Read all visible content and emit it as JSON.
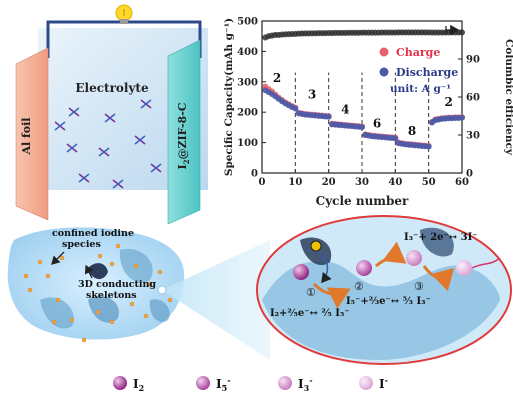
{
  "battery": {
    "left_electrode_label": "Al foil",
    "right_electrode_label_main": "I",
    "right_electrode_label_sub": "2",
    "right_electrode_label_rest": "@ZIF-8-C",
    "electrolyte_label": "Electrolyte",
    "colors": {
      "left_electrode": "#f2a98c",
      "right_electrode": "#66d0cf",
      "wire": "#2f4a8a",
      "bulb": "#ffd82a"
    }
  },
  "chart_data": {
    "type": "scatter",
    "xlabel": "Cycle number",
    "ylabel": "Specific Capacity(mAh g⁻¹)",
    "y2label": "Columbic efficiency",
    "xlim": [
      0,
      60
    ],
    "ylim": [
      0,
      500
    ],
    "y2lim": [
      0,
      120
    ],
    "xticks": [
      "0",
      "10",
      "20",
      "30",
      "40",
      "50",
      "60"
    ],
    "yticks": [
      "0",
      "100",
      "200",
      "300",
      "400",
      "500"
    ],
    "y2ticks": [
      "0",
      "30",
      "60",
      "90"
    ],
    "legend": {
      "position": "top-right",
      "unit_label": "unit: A g⁻¹"
    },
    "rate_labels": [
      {
        "label": "2",
        "x": 4.5,
        "y": 300
      },
      {
        "label": "3",
        "x": 15,
        "y": 245
      },
      {
        "label": "4",
        "x": 25,
        "y": 195
      },
      {
        "label": "6",
        "x": 34.5,
        "y": 150
      },
      {
        "label": "8",
        "x": 45,
        "y": 125
      },
      {
        "label": "2",
        "x": 56,
        "y": 220
      }
    ],
    "dividers_at": [
      10,
      20,
      30,
      40,
      50
    ],
    "arrow": {
      "x": 58,
      "y": 472,
      "direction": "right"
    },
    "series": [
      {
        "name": "Charge",
        "color": "#e8606b",
        "x": [
          1,
          2,
          3,
          4,
          5,
          6,
          7,
          8,
          9,
          10,
          11,
          12,
          13,
          14,
          15,
          16,
          17,
          18,
          19,
          20,
          21,
          22,
          23,
          24,
          25,
          26,
          27,
          28,
          29,
          30,
          31,
          32,
          33,
          34,
          35,
          36,
          37,
          38,
          39,
          40,
          41,
          42,
          43,
          44,
          45,
          46,
          47,
          48,
          49,
          50,
          51,
          52,
          53,
          54,
          55,
          56,
          57,
          58,
          59,
          60
        ],
        "values": [
          284,
          276,
          268,
          258,
          248,
          240,
          232,
          226,
          220,
          215,
          198,
          196,
          194,
          193,
          192,
          191,
          190,
          189,
          188,
          187,
          162,
          161,
          160,
          159,
          158,
          157,
          156,
          155,
          154,
          153,
          127,
          125,
          123,
          122,
          121,
          120,
          119,
          118,
          117,
          116,
          100,
          98,
          96,
          95,
          94,
          93,
          92,
          91,
          90,
          89,
          168,
          176,
          178,
          180,
          181,
          182,
          182,
          183,
          183,
          184
        ]
      },
      {
        "name": "Discharge",
        "color": "#4a5aa8",
        "x": [
          1,
          2,
          3,
          4,
          5,
          6,
          7,
          8,
          9,
          10,
          11,
          12,
          13,
          14,
          15,
          16,
          17,
          18,
          19,
          20,
          21,
          22,
          23,
          24,
          25,
          26,
          27,
          28,
          29,
          30,
          31,
          32,
          33,
          34,
          35,
          36,
          37,
          38,
          39,
          40,
          41,
          42,
          43,
          44,
          45,
          46,
          47,
          48,
          49,
          50,
          51,
          52,
          53,
          54,
          55,
          56,
          57,
          58,
          59,
          60
        ],
        "values": [
          272,
          266,
          260,
          252,
          244,
          236,
          229,
          223,
          217,
          212,
          196,
          194,
          192,
          191,
          190,
          189,
          188,
          187,
          186,
          185,
          160,
          159,
          158,
          157,
          156,
          155,
          154,
          153,
          152,
          151,
          125,
          123,
          121,
          120,
          119,
          118,
          117,
          116,
          115,
          114,
          98,
          96,
          94,
          93,
          92,
          91,
          90,
          89,
          88,
          87,
          166,
          174,
          176,
          178,
          179,
          180,
          180,
          181,
          181,
          182
        ]
      },
      {
        "name": "Columbic efficiency",
        "color": "#333333",
        "axis": "right",
        "x": [
          1,
          2,
          3,
          4,
          5,
          6,
          7,
          8,
          9,
          10,
          11,
          12,
          13,
          14,
          15,
          16,
          17,
          18,
          19,
          20,
          21,
          22,
          23,
          24,
          25,
          26,
          27,
          28,
          29,
          30,
          31,
          32,
          33,
          34,
          35,
          36,
          37,
          38,
          39,
          40,
          41,
          42,
          43,
          44,
          45,
          46,
          47,
          48,
          49,
          50,
          51,
          52,
          53,
          54,
          55,
          56,
          57,
          58,
          59,
          60
        ],
        "values": [
          107,
          108,
          108.5,
          109,
          109,
          109.3,
          109.5,
          109.6,
          109.7,
          109.8,
          110,
          110.1,
          110.2,
          110.2,
          110.3,
          110.3,
          110.4,
          110.4,
          110.4,
          110.5,
          110.5,
          110.6,
          110.6,
          110.6,
          110.6,
          110.7,
          110.7,
          110.7,
          110.7,
          110.8,
          110.8,
          110.8,
          110.8,
          110.8,
          110.8,
          110.9,
          110.9,
          110.9,
          110.9,
          110.9,
          111,
          111,
          111,
          111,
          111,
          111,
          111,
          111,
          111,
          111,
          110.9,
          110.9,
          110.9,
          110.9,
          110.9,
          111,
          111,
          111,
          111,
          111
        ]
      }
    ]
  },
  "zoom_labels": {
    "confined": [
      "confined iodine",
      "species"
    ],
    "skeleton": [
      "3D conducting",
      "skeletons"
    ]
  },
  "reactions": {
    "step1_circle": "①",
    "step2_circle": "②",
    "step3_circle": "③",
    "eq1": "I₂+²⁄₅e⁻↔ ²⁄₅ I₅⁻",
    "eq2": "I₅⁻+⅔e⁻↔ ⁵⁄₃ I₃⁻",
    "eq3": "I₃⁻+ 2e⁻↔ 3I⁻"
  },
  "legend_species": [
    {
      "label_main": "I",
      "label_sub": "2",
      "label_sup": "",
      "color": "#8b1a7a"
    },
    {
      "label_main": "I",
      "label_sub": "5",
      "label_sup": "-",
      "color": "#a43a98"
    },
    {
      "label_main": "I",
      "label_sub": "3",
      "label_sup": "-",
      "color": "#c478bb"
    },
    {
      "label_main": "I",
      "label_sub": "",
      "label_sup": "-",
      "color": "#e3b6df"
    }
  ]
}
